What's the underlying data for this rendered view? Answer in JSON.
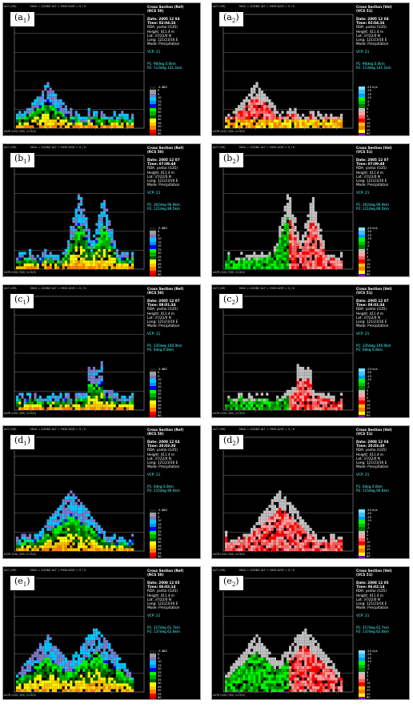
{
  "panels": [
    {
      "id": "a1",
      "label": "(a",
      "sub": "1",
      "title": "Cross Section (Ref)",
      "code": "(RCS 50)",
      "date": "Date: 2005 12 04",
      "time": "Time: 02:04:16",
      "p1": "P1: 90deg 0.0km",
      "p2": "P2: 113deg 141.1km",
      "type": "ref"
    },
    {
      "id": "a2",
      "label": "(a",
      "sub": "2",
      "title": "Cross Section (Vel)",
      "code": "(VCS 51)",
      "date": "Date: 2005 12 04",
      "time": "Time: 02:04:16",
      "p1": "P1: 90deg 0.0km",
      "p2": "P2: 113deg 141.1km",
      "type": "vel"
    },
    {
      "id": "b1",
      "label": "(b",
      "sub": "1",
      "title": "Cross Section (Ref)",
      "code": "(RCS 50)",
      "date": "Date: 2005 12 07",
      "time": "Time: 07:09:48",
      "p1": "P1: 302deg 90.9km",
      "p2": "P2: 121deg 89.5km",
      "type": "ref"
    },
    {
      "id": "b2",
      "label": "(b",
      "sub": "2",
      "title": "Cross Section (Vel)",
      "code": "(VCS 51)",
      "date": "Date: 2005 12 07",
      "time": "Time: 07:09:48",
      "p1": "P1: 302deg 90.9km",
      "p2": "P2: 121deg 89.5km",
      "type": "vel"
    },
    {
      "id": "c1",
      "label": "(c",
      "sub": "1",
      "title": "Cross Section (Ref)",
      "code": "(RCS 50)",
      "date": "Date: 2005 12 07",
      "time": "Time: 08:01:34",
      "p1": "P1: 335deg 100.0km",
      "p2": "P2: 0deg 0.0km",
      "type": "ref"
    },
    {
      "id": "c2",
      "label": "(c",
      "sub": "2",
      "title": "Cross Section (Vel)",
      "code": "(VCS 51)",
      "date": "Date: 2005 12 07",
      "time": "Time: 08:01:34",
      "p1": "P1: 335deg 100.0km",
      "p2": "P2: 0deg 0.0km",
      "type": "vel"
    },
    {
      "id": "d1",
      "label": "(d",
      "sub": "1",
      "title": "Cross Section (Ref)",
      "code": "(RCS 50)",
      "date": "Date: 2008 12 04",
      "time": "Time: 20:03:30",
      "p1": "P1: 0deg 0.0km",
      "p2": "P2: 115deg 90.6km",
      "type": "ref"
    },
    {
      "id": "d2",
      "label": "(d",
      "sub": "2",
      "title": "Cross Section (Vel)",
      "code": "(VCS 51)",
      "date": "Date: 2008 12 04",
      "time": "Time: 20:03:30",
      "p1": "P1: 0deg 0.0km",
      "p2": "P2: 115deg 90.6km",
      "type": "vel"
    },
    {
      "id": "e1",
      "label": "(e",
      "sub": "1",
      "title": "Cross Section (Ref)",
      "code": "(RCS 50)",
      "date": "Date: 2008 12 05",
      "time": "Time: 06:02:14",
      "p1": "P1: 317deg 61.7km",
      "p2": "P2: 137deg 62.6km",
      "type": "ref"
    },
    {
      "id": "e2",
      "label": "(e",
      "sub": "2",
      "title": "Cross Section (Vel)",
      "code": "(VCS 51)",
      "date": "Date: 2008 12 05",
      "time": "Time: 06:02:14",
      "p1": "P1: 317deg 61.7km",
      "p2": "P2: 137deg 62.6km",
      "type": "vel"
    }
  ],
  "common": {
    "rda": "RDA: yantai (G35)",
    "height": "Height: 411.4 m",
    "lat": "Lat:   37/22/0 N",
    "long": "Long: 121/23/16 E",
    "mode": "Mode: Precipitation",
    "vcp": "VCP: 21",
    "alt": "ALT (1M)",
    "hdr": "MAX = 42DBZ  ALT = 9KM  AZ/R = 0 / 0",
    "bottom": "AZ/R  (0/0)   (9/0)   (113/0)"
  },
  "ref_legend": {
    "unit": "dBZ",
    "labels": [
      "-5",
      "0",
      "5",
      "10",
      "15",
      "20",
      "25",
      "30",
      "35",
      "40",
      "45",
      "50",
      "55",
      "60",
      "65"
    ],
    "colors": [
      "#1a1a1a",
      "#9c9c9c",
      "#7a7acc",
      "#00c8ff",
      "#0090ff",
      "#0000ff",
      "#00ff00",
      "#00b000",
      "#006400",
      "#ffff00",
      "#ffc800",
      "#ff8000",
      "#ff0000",
      "#c00000",
      "#ff00ff"
    ]
  },
  "vel_legend": {
    "unit": "m/s",
    "labels": [
      "-25",
      "-20",
      "-15",
      "-10",
      "-5",
      "-2",
      "0",
      "2",
      "5",
      "10",
      "15",
      "20",
      "25",
      "RF"
    ],
    "colors": [
      "#7fe0ff",
      "#40c0ff",
      "#00a0ff",
      "#00ff00",
      "#00c000",
      "#008000",
      "#c0c0c0",
      "#ffa0a0",
      "#ff6060",
      "#ff0000",
      "#ffc000",
      "#ff8000",
      "#ffff00",
      "#8000c0"
    ]
  },
  "colors": {
    "grid": "#bbbbbb",
    "ticklabel": "#cccccc"
  }
}
